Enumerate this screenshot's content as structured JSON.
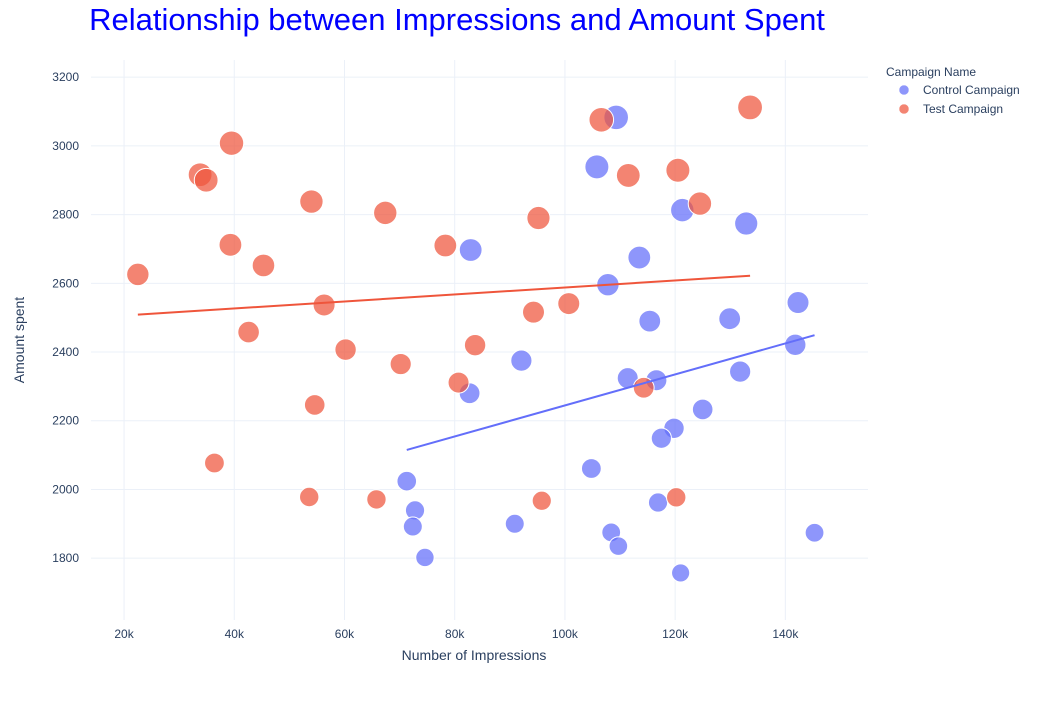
{
  "chart_data": {
    "type": "scatter",
    "title": "Relationship between Impressions and Amount Spent",
    "xlabel": "Number of Impressions",
    "ylabel": "Amount spent",
    "xlim": [
      14000,
      155000
    ],
    "ylim": [
      1620,
      3250
    ],
    "x_ticks": [
      20000,
      40000,
      60000,
      80000,
      100000,
      120000,
      140000
    ],
    "x_tick_labels": [
      "20k",
      "40k",
      "60k",
      "80k",
      "100k",
      "120k",
      "140k"
    ],
    "y_ticks": [
      1800,
      2000,
      2200,
      2400,
      2600,
      2800,
      3000,
      3200
    ],
    "y_tick_labels": [
      "1800",
      "2000",
      "2200",
      "2400",
      "2600",
      "2800",
      "3000",
      "3200"
    ],
    "grid": true,
    "legend": {
      "title": "Campaign Name",
      "placement": "top-right"
    },
    "series": [
      {
        "name": "Control Campaign",
        "color": "#636efa",
        "points": [
          {
            "x": 109300,
            "y": 3083
          },
          {
            "x": 105800,
            "y": 2939
          },
          {
            "x": 121300,
            "y": 2813
          },
          {
            "x": 132900,
            "y": 2774
          },
          {
            "x": 82900,
            "y": 2697
          },
          {
            "x": 113500,
            "y": 2675
          },
          {
            "x": 107800,
            "y": 2596
          },
          {
            "x": 115400,
            "y": 2490
          },
          {
            "x": 142300,
            "y": 2544
          },
          {
            "x": 129900,
            "y": 2497
          },
          {
            "x": 141800,
            "y": 2421
          },
          {
            "x": 92100,
            "y": 2375
          },
          {
            "x": 111400,
            "y": 2324
          },
          {
            "x": 116600,
            "y": 2318
          },
          {
            "x": 131800,
            "y": 2343
          },
          {
            "x": 82700,
            "y": 2280
          },
          {
            "x": 125000,
            "y": 2233
          },
          {
            "x": 119800,
            "y": 2178
          },
          {
            "x": 117500,
            "y": 2149
          },
          {
            "x": 104800,
            "y": 2061
          },
          {
            "x": 71300,
            "y": 2024
          },
          {
            "x": 116900,
            "y": 1962
          },
          {
            "x": 72800,
            "y": 1939
          },
          {
            "x": 90900,
            "y": 1900
          },
          {
            "x": 72400,
            "y": 1892
          },
          {
            "x": 108400,
            "y": 1875
          },
          {
            "x": 145300,
            "y": 1874
          },
          {
            "x": 109700,
            "y": 1835
          },
          {
            "x": 74600,
            "y": 1802
          },
          {
            "x": 121000,
            "y": 1757
          }
        ],
        "trendline": [
          [
            71300,
            2115
          ],
          [
            145300,
            2449
          ]
        ]
      },
      {
        "name": "Test Campaign",
        "color": "#ef553b",
        "points": [
          {
            "x": 133600,
            "y": 3112
          },
          {
            "x": 106600,
            "y": 3076
          },
          {
            "x": 39500,
            "y": 3008
          },
          {
            "x": 120500,
            "y": 2929
          },
          {
            "x": 33800,
            "y": 2916
          },
          {
            "x": 111500,
            "y": 2914
          },
          {
            "x": 34900,
            "y": 2900
          },
          {
            "x": 54000,
            "y": 2838
          },
          {
            "x": 124500,
            "y": 2832
          },
          {
            "x": 67400,
            "y": 2805
          },
          {
            "x": 95200,
            "y": 2790
          },
          {
            "x": 39300,
            "y": 2712
          },
          {
            "x": 78300,
            "y": 2710
          },
          {
            "x": 45300,
            "y": 2652
          },
          {
            "x": 22500,
            "y": 2626
          },
          {
            "x": 56300,
            "y": 2537
          },
          {
            "x": 100700,
            "y": 2541
          },
          {
            "x": 94300,
            "y": 2516
          },
          {
            "x": 42600,
            "y": 2458
          },
          {
            "x": 83700,
            "y": 2420
          },
          {
            "x": 60200,
            "y": 2407
          },
          {
            "x": 70200,
            "y": 2365
          },
          {
            "x": 80700,
            "y": 2311
          },
          {
            "x": 114300,
            "y": 2296
          },
          {
            "x": 54600,
            "y": 2246
          },
          {
            "x": 36400,
            "y": 2077
          },
          {
            "x": 53600,
            "y": 1978
          },
          {
            "x": 120200,
            "y": 1977
          },
          {
            "x": 65800,
            "y": 1971
          },
          {
            "x": 95800,
            "y": 1967
          }
        ],
        "trendline": [
          [
            22500,
            2509
          ],
          [
            133600,
            2622
          ]
        ]
      }
    ]
  }
}
